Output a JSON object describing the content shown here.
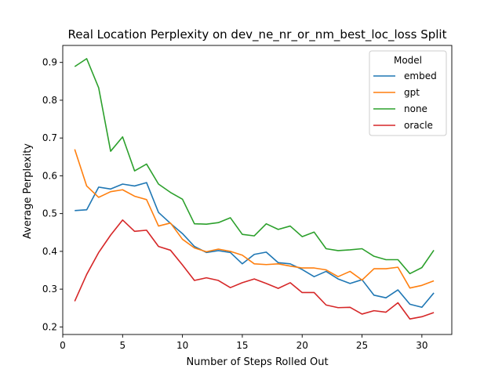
{
  "chart_data": {
    "type": "line",
    "title": "Real Location Perplexity on dev_ne_nr_or_nm_best_loc_loss Split",
    "xlabel": "Number of Steps Rolled Out",
    "ylabel": "Average Perplexity",
    "xlim": [
      0,
      32.5
    ],
    "ylim": [
      0.18,
      0.945
    ],
    "xticks": [
      0,
      5,
      10,
      15,
      20,
      25,
      30
    ],
    "yticks": [
      0.2,
      0.3,
      0.4,
      0.5,
      0.6,
      0.7,
      0.8,
      0.9
    ],
    "grid": false,
    "legend": {
      "title": "Model",
      "placement": "top-right"
    },
    "x": [
      1,
      2,
      3,
      4,
      5,
      6,
      7,
      8,
      9,
      10,
      11,
      12,
      13,
      14,
      15,
      16,
      17,
      18,
      19,
      20,
      21,
      22,
      23,
      24,
      25,
      26,
      27,
      28,
      29,
      30,
      31
    ],
    "series": [
      {
        "name": "embed",
        "color": "#1f77b4",
        "values": [
          0.508,
          0.51,
          0.57,
          0.565,
          0.578,
          0.573,
          0.582,
          0.503,
          0.474,
          0.447,
          0.413,
          0.397,
          0.402,
          0.397,
          0.367,
          0.392,
          0.398,
          0.37,
          0.367,
          0.352,
          0.333,
          0.347,
          0.327,
          0.315,
          0.325,
          0.284,
          0.277,
          0.298,
          0.26,
          0.252,
          0.29
        ]
      },
      {
        "name": "gpt",
        "color": "#ff7f0e",
        "values": [
          0.67,
          0.573,
          0.543,
          0.558,
          0.563,
          0.546,
          0.537,
          0.467,
          0.475,
          0.432,
          0.409,
          0.399,
          0.406,
          0.4,
          0.39,
          0.367,
          0.365,
          0.367,
          0.361,
          0.356,
          0.356,
          0.351,
          0.333,
          0.347,
          0.324,
          0.354,
          0.354,
          0.358,
          0.303,
          0.31,
          0.322
        ]
      },
      {
        "name": "none",
        "color": "#2ca02c",
        "values": [
          0.889,
          0.91,
          0.833,
          0.665,
          0.703,
          0.613,
          0.631,
          0.578,
          0.556,
          0.538,
          0.473,
          0.472,
          0.476,
          0.489,
          0.445,
          0.441,
          0.473,
          0.458,
          0.467,
          0.439,
          0.451,
          0.407,
          0.402,
          0.404,
          0.407,
          0.387,
          0.378,
          0.378,
          0.341,
          0.357,
          0.403
        ]
      },
      {
        "name": "oracle",
        "color": "#d62728",
        "values": [
          0.268,
          0.339,
          0.397,
          0.443,
          0.483,
          0.453,
          0.456,
          0.413,
          0.403,
          0.364,
          0.323,
          0.33,
          0.323,
          0.304,
          0.317,
          0.327,
          0.315,
          0.302,
          0.317,
          0.291,
          0.291,
          0.258,
          0.251,
          0.252,
          0.234,
          0.243,
          0.239,
          0.264,
          0.221,
          0.227,
          0.238
        ]
      }
    ]
  }
}
